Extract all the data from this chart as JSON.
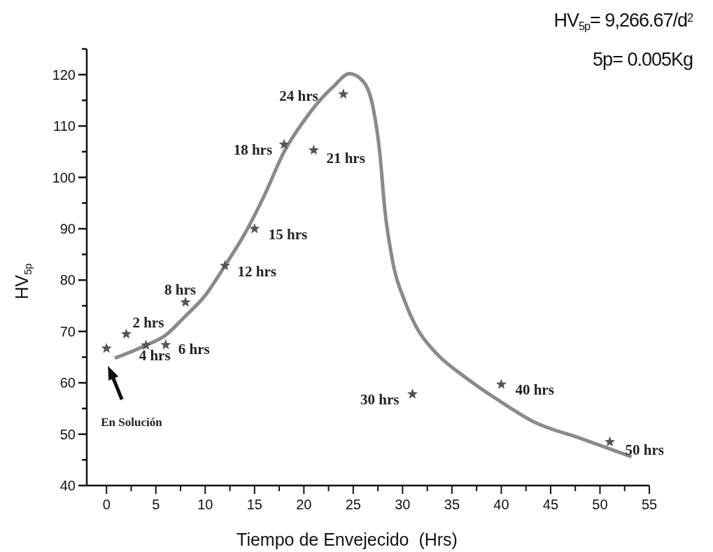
{
  "chart_data": {
    "type": "scatter",
    "xlabel": "Tiempo de Envejecido  (Hrs)",
    "ylabel": "HV$_{5p}$",
    "xlim": [
      -2,
      55
    ],
    "ylim": [
      40,
      125
    ],
    "xticks": [
      0,
      {
        "value": 2.5,
        "label": null
      },
      5,
      {
        "value": 7.5,
        "label": null
      },
      10,
      {
        "value": 12.5,
        "label": null
      },
      15,
      {
        "value": 17.5,
        "label": null
      },
      20,
      {
        "value": 22.5,
        "label": null
      },
      25,
      {
        "value": 27.5,
        "label": null
      },
      30,
      {
        "value": 32.5,
        "label": null
      },
      35,
      {
        "value": 37.5,
        "label": null
      },
      40,
      {
        "value": 42.5,
        "label": null
      },
      45,
      {
        "value": 47.5,
        "label": null
      },
      50,
      {
        "value": 52.5,
        "label": null
      },
      55
    ],
    "yticks": [
      40,
      {
        "value": 45,
        "label": null
      },
      50,
      {
        "value": 55,
        "label": null
      },
      60,
      {
        "value": 65,
        "label": null
      },
      70,
      {
        "value": 75,
        "label": null
      },
      80,
      {
        "value": 85,
        "label": null
      },
      90,
      {
        "value": 95,
        "label": null
      },
      100,
      {
        "value": 105,
        "label": null
      },
      110,
      {
        "value": 115,
        "label": null
      },
      120,
      {
        "value": 125,
        "label": null
      }
    ],
    "grid": false,
    "series": [
      {
        "color": "#555555",
        "marker": "star",
        "x": [
          0,
          2,
          4,
          6,
          8,
          12,
          15,
          18,
          21,
          24,
          31,
          40,
          51
        ],
        "values": [
          66.7,
          69.5,
          67.3,
          67.4,
          75.7,
          82.8,
          90.0,
          106.4,
          105.3,
          116.2,
          57.8,
          59.7,
          48.5
        ]
      },
      {
        "type": "line",
        "color": "#8a8a8a",
        "marker": "none",
        "line_style": "solid",
        "x": [
          0.85,
          4,
          6,
          8,
          10,
          12,
          14,
          16,
          18,
          20,
          22,
          23,
          24.6,
          26,
          27,
          27.7,
          28.2,
          28.9,
          30.3,
          31.5,
          33.1,
          36.4,
          40.2,
          43.3,
          48,
          53.2
        ],
        "values": [
          64.8,
          67.3,
          69.3,
          73,
          77,
          82.8,
          89,
          96.5,
          105,
          111,
          115.8,
          117.7,
          120.2,
          118.7,
          113.7,
          104.6,
          93.7,
          84.6,
          75.5,
          70.5,
          66.4,
          61,
          56,
          52.4,
          49.2,
          45.6
        ]
      }
    ],
    "annotations": [
      {
        "text": "2 hrs",
        "x": 2,
        "y": 69.5
      },
      {
        "text": "4 hrs",
        "x": 4,
        "y": 67.3
      },
      {
        "text": "6 hrs",
        "x": 6,
        "y": 67.4
      },
      {
        "text": "8 hrs",
        "x": 8,
        "y": 75.7
      },
      {
        "text": "12 hrs",
        "x": 12,
        "y": 82.8
      },
      {
        "text": "15 hrs",
        "x": 15,
        "y": 90.0
      },
      {
        "text": "18 hrs",
        "x": 18,
        "y": 106.4
      },
      {
        "text": "21 hrs",
        "x": 21,
        "y": 105.3
      },
      {
        "text": "24 hrs",
        "x": 24,
        "y": 116.2
      },
      {
        "text": "30 hrs",
        "x": 31,
        "y": 57.8
      },
      {
        "text": "40 hrs",
        "x": 40,
        "y": 59.7
      },
      {
        "text": "50 hrs",
        "x": 51,
        "y": 48.5
      },
      "En Solución",
      "HV$_{5p}$= 9,266.67/d$^{2}$",
      "5p= 0.005Kg"
    ]
  }
}
